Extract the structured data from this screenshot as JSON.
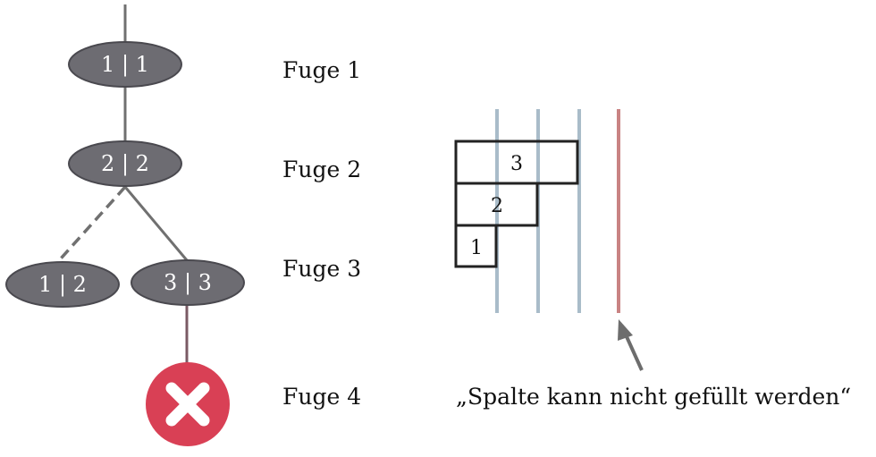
{
  "tree": {
    "nodes": [
      {
        "id": "n11",
        "label": "1 | 1"
      },
      {
        "id": "n22",
        "label": "2 | 2"
      },
      {
        "id": "n12",
        "label": "1 | 2"
      },
      {
        "id": "n33",
        "label": "3 | 3"
      }
    ],
    "failure_icon": "close-x-icon"
  },
  "fugen": [
    "Fuge 1",
    "Fuge 2",
    "Fuge 3",
    "Fuge 4"
  ],
  "grid": {
    "boxes": [
      {
        "label": "3"
      },
      {
        "label": "2"
      },
      {
        "label": "1"
      }
    ],
    "note": "„Spalte kann nicht gefüllt werden“"
  },
  "colors": {
    "node_fill": "#6d6c72",
    "node_stroke": "#4a494f",
    "edge": "#707070",
    "failed_edge": "#7a5a64",
    "failure_red": "#d94055",
    "column_line": "#a9bcc9",
    "red_column": "#c98383",
    "arrow": "#6d6d6d"
  }
}
